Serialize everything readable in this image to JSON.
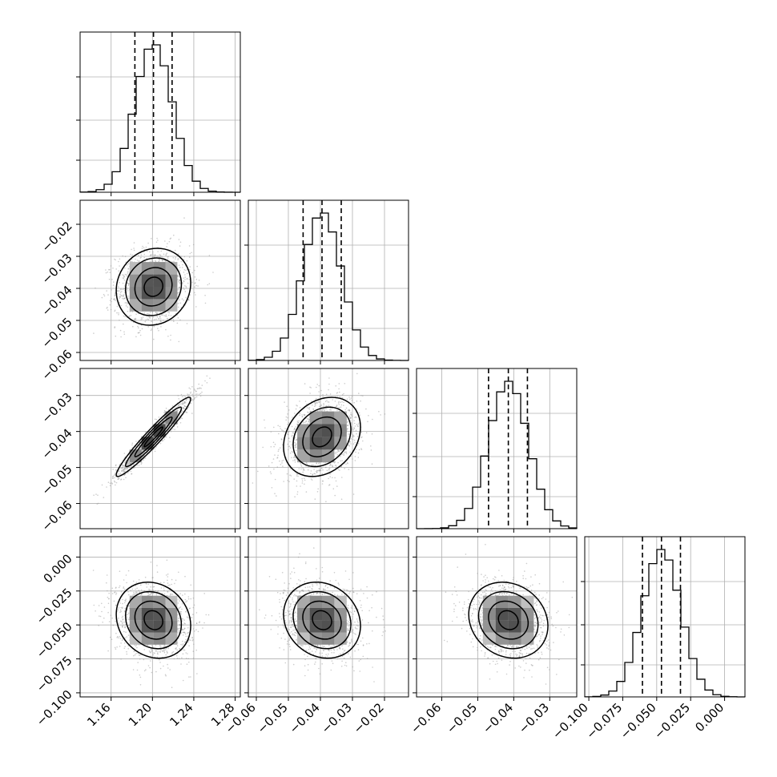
{
  "chart_data": {
    "type": "corner",
    "title": "",
    "grid": true,
    "colors": {
      "contour": "#000000",
      "histogram": "#000000",
      "points": "#9a9a9a",
      "grid": "#b0b0b0"
    },
    "parameters": [
      {
        "range": [
          1.13,
          1.285
        ],
        "ticks": [
          1.16,
          1.2,
          1.24,
          1.28
        ],
        "tick_labels": [
          "1.16",
          "1.20",
          "1.24",
          "1.28"
        ],
        "quantiles": [
          1.183,
          1.201,
          1.219
        ],
        "mean": 1.201,
        "sd": 0.018
      },
      {
        "range": [
          -0.0625,
          -0.0125
        ],
        "ticks": [
          -0.06,
          -0.05,
          -0.04,
          -0.03,
          -0.02
        ],
        "tick_labels": [
          "−0.06",
          "−0.05",
          "−0.04",
          "−0.03",
          "−0.02"
        ],
        "quantiles": [
          -0.0454,
          -0.0395,
          -0.0335
        ],
        "mean": -0.0395,
        "sd": 0.006
      },
      {
        "range": [
          -0.067,
          -0.0225
        ],
        "ticks": [
          -0.06,
          -0.05,
          -0.04,
          -0.03
        ],
        "tick_labels": [
          "−0.06",
          "−0.05",
          "−0.04",
          "−0.03"
        ],
        "quantiles": [
          -0.047,
          -0.0415,
          -0.0362
        ],
        "mean": -0.0415,
        "sd": 0.0055
      },
      {
        "range": [
          -0.103,
          0.015
        ],
        "ticks": [
          -0.1,
          -0.075,
          -0.05,
          -0.025,
          0.0
        ],
        "tick_labels": [
          "−0.100",
          "−0.075",
          "−0.050",
          "−0.025",
          "0.000"
        ],
        "quantiles": [
          -0.0605,
          -0.0465,
          -0.0325
        ],
        "mean": -0.0465,
        "sd": 0.014
      }
    ],
    "correlations": [
      {
        "pair": [
          0,
          1
        ],
        "r": 0.1
      },
      {
        "pair": [
          0,
          2
        ],
        "r": 0.96
      },
      {
        "pair": [
          1,
          2
        ],
        "r": 0.25
      },
      {
        "pair": [
          0,
          3
        ],
        "r": -0.15
      },
      {
        "pair": [
          1,
          3
        ],
        "r": -0.15
      },
      {
        "pair": [
          2,
          3
        ],
        "r": -0.15
      }
    ]
  }
}
